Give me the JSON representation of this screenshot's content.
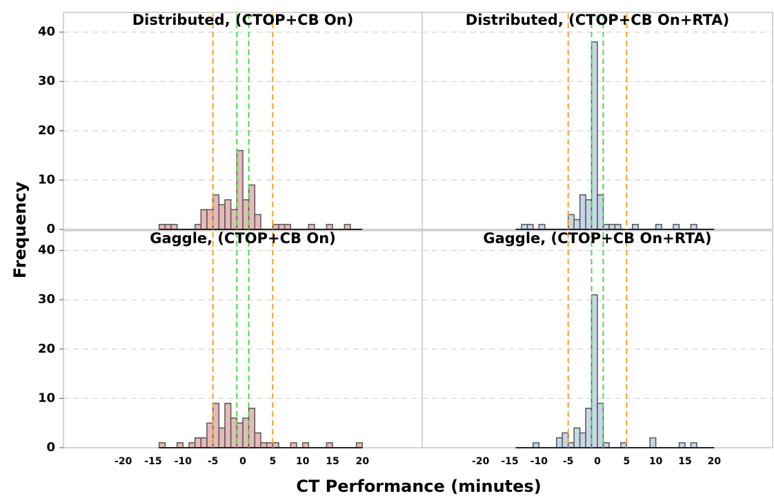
{
  "axes": {
    "xlabel": "CT Performance (minutes)",
    "ylabel": "Frequency",
    "xlim": [
      -30,
      30
    ],
    "xticks": [
      -20,
      -15,
      -10,
      -5,
      0,
      5,
      10,
      15,
      20
    ],
    "ylim": [
      0,
      44
    ],
    "yticks": [
      0,
      10,
      20,
      30,
      40
    ],
    "grid": true
  },
  "chart_data": [
    {
      "type": "histogram",
      "title": "Distributed, (CTOP+CB On)",
      "color": "#e8b9b9",
      "bins": [
        -14,
        -13,
        -12,
        -11,
        -10,
        -9,
        -8,
        -7,
        -6,
        -5,
        -4,
        -3,
        -2,
        -1,
        0,
        1,
        2,
        3,
        4,
        5,
        6,
        7,
        8,
        9,
        10,
        11,
        12,
        13,
        14,
        15,
        16,
        17,
        18,
        19,
        20
      ],
      "counts": [
        1,
        1,
        1,
        0,
        0,
        0,
        1,
        4,
        4,
        7,
        5,
        6,
        4,
        16,
        6,
        9,
        3,
        0,
        0,
        1,
        1,
        1,
        0,
        0,
        0,
        1,
        0,
        0,
        1,
        0,
        0,
        1,
        0,
        0
      ],
      "reference_lines": [
        {
          "value": -5,
          "color": "#f5a020"
        },
        {
          "value": -1,
          "color": "#44dd44"
        },
        {
          "value": 1,
          "color": "#44dd44"
        },
        {
          "value": 5,
          "color": "#f5a020"
        }
      ]
    },
    {
      "type": "histogram",
      "title": "Distributed, (CTOP+CB On+RTA)",
      "color": "#c8d7e8",
      "bins": [
        -14,
        -13,
        -12,
        -11,
        -10,
        -9,
        -8,
        -7,
        -6,
        -5,
        -4,
        -3,
        -2,
        -1,
        0,
        1,
        2,
        3,
        4,
        5,
        6,
        7,
        8,
        9,
        10,
        11,
        12,
        13,
        14,
        15,
        16,
        17,
        18,
        19,
        20
      ],
      "counts": [
        0,
        1,
        1,
        0,
        1,
        0,
        0,
        0,
        0,
        3,
        2,
        7,
        6,
        38,
        7,
        1,
        1,
        1,
        0,
        0,
        1,
        0,
        0,
        0,
        1,
        0,
        0,
        1,
        0,
        0,
        1,
        0,
        0,
        0
      ],
      "reference_lines": [
        {
          "value": -5,
          "color": "#f5a020"
        },
        {
          "value": -1,
          "color": "#44dd44"
        },
        {
          "value": 1,
          "color": "#44dd44"
        },
        {
          "value": 5,
          "color": "#f5a020"
        }
      ]
    },
    {
      "type": "histogram",
      "title": "Gaggle, (CTOP+CB On)",
      "color": "#e8b9b9",
      "bins": [
        -14,
        -13,
        -12,
        -11,
        -10,
        -9,
        -8,
        -7,
        -6,
        -5,
        -4,
        -3,
        -2,
        -1,
        0,
        1,
        2,
        3,
        4,
        5,
        6,
        7,
        8,
        9,
        10,
        11,
        12,
        13,
        14,
        15,
        16,
        17,
        18,
        19,
        20
      ],
      "counts": [
        1,
        0,
        0,
        1,
        0,
        1,
        2,
        2,
        5,
        9,
        4,
        9,
        6,
        5,
        6,
        8,
        3,
        1,
        1,
        1,
        0,
        0,
        1,
        0,
        1,
        0,
        0,
        0,
        1,
        0,
        0,
        0,
        0,
        1
      ],
      "reference_lines": [
        {
          "value": -5,
          "color": "#f5a020"
        },
        {
          "value": -1,
          "color": "#44dd44"
        },
        {
          "value": 1,
          "color": "#44dd44"
        },
        {
          "value": 5,
          "color": "#f5a020"
        }
      ]
    },
    {
      "type": "histogram",
      "title": "Gaggle, (CTOP+CB On+RTA)",
      "color": "#c8d7e8",
      "bins": [
        -14,
        -13,
        -12,
        -11,
        -10,
        -9,
        -8,
        -7,
        -6,
        -5,
        -4,
        -3,
        -2,
        -1,
        0,
        1,
        2,
        3,
        4,
        5,
        6,
        7,
        8,
        9,
        10,
        11,
        12,
        13,
        14,
        15,
        16,
        17,
        18,
        19,
        20
      ],
      "counts": [
        0,
        0,
        0,
        1,
        0,
        0,
        0,
        2,
        3,
        1,
        4,
        3,
        8,
        31,
        9,
        1,
        0,
        0,
        1,
        0,
        0,
        0,
        0,
        2,
        0,
        0,
        0,
        0,
        1,
        0,
        1,
        0,
        0,
        0
      ],
      "reference_lines": [
        {
          "value": -5,
          "color": "#f5a020"
        },
        {
          "value": -1,
          "color": "#44dd44"
        },
        {
          "value": 1,
          "color": "#44dd44"
        },
        {
          "value": 5,
          "color": "#f5a020"
        }
      ]
    }
  ]
}
